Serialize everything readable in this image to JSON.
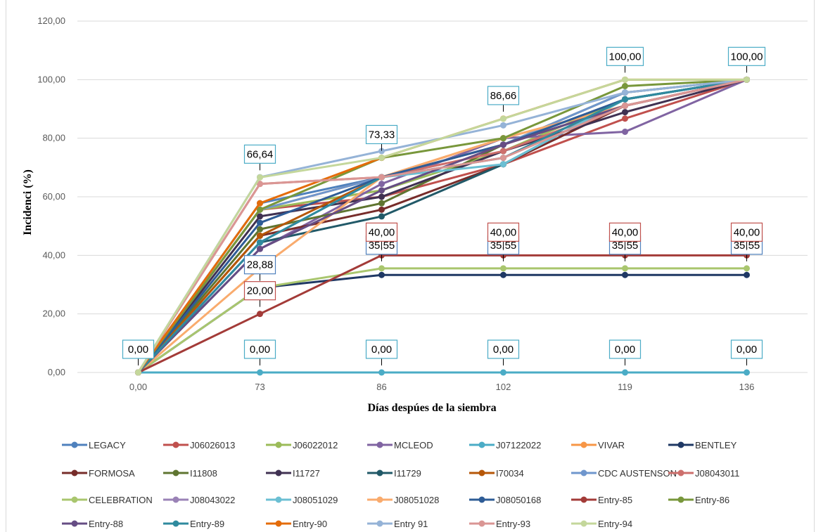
{
  "chart_data": {
    "type": "line",
    "title": "",
    "xlabel": "Días despúes de la siembra",
    "ylabel": "Incidenci (%)",
    "categories": [
      "0,00",
      "73",
      "86",
      "102",
      "119",
      "136"
    ],
    "ylim": [
      0,
      120
    ],
    "yticks": [
      "0,00",
      "20,00",
      "40,00",
      "60,00",
      "80,00",
      "100,00",
      "120,00"
    ],
    "grid": true,
    "legend_position": "bottom",
    "series": [
      {
        "name": "LEGACY",
        "color": "#4f81bd",
        "values": [
          0,
          57.8,
          66.7,
          77.8,
          93.3,
          100
        ]
      },
      {
        "name": "J06026013",
        "color": "#c0504d",
        "values": [
          0,
          55.6,
          60.0,
          71.1,
          86.7,
          100
        ]
      },
      {
        "name": "J06022012",
        "color": "#9bbb59",
        "values": [
          0,
          55.6,
          62.2,
          75.6,
          93.3,
          100
        ]
      },
      {
        "name": "MCLEOD",
        "color": "#8064a2",
        "values": [
          0,
          42.2,
          64.4,
          80.0,
          82.2,
          100
        ]
      },
      {
        "name": "J07122022",
        "color": "#4bacc6",
        "values": [
          0,
          0,
          0,
          0,
          0,
          0
        ]
      },
      {
        "name": "VIVAR",
        "color": "#f79646",
        "values": [
          0,
          55.6,
          66.7,
          80.0,
          91.1,
          100
        ]
      },
      {
        "name": "BENTLEY",
        "color": "#1f3864",
        "values": [
          0,
          28.9,
          33.3,
          33.3,
          33.3,
          33.3
        ]
      },
      {
        "name": "FORMOSA",
        "color": "#772c2a",
        "values": [
          0,
          46.7,
          55.6,
          71.1,
          91.1,
          100
        ]
      },
      {
        "name": "I11808",
        "color": "#5f7530",
        "values": [
          0,
          48.9,
          57.8,
          77.8,
          95.6,
          100
        ]
      },
      {
        "name": "I11727",
        "color": "#403152",
        "values": [
          0,
          53.3,
          60.0,
          75.6,
          88.9,
          100
        ]
      },
      {
        "name": "I11729",
        "color": "#215968",
        "values": [
          0,
          44.4,
          53.3,
          71.1,
          93.3,
          100
        ]
      },
      {
        "name": "I70034",
        "color": "#b65708",
        "values": [
          0,
          46.7,
          66.7,
          77.8,
          91.1,
          100
        ]
      },
      {
        "name": "CDC AUSTENSON",
        "color": "#6f96cd",
        "values": [
          0,
          55.6,
          66.7,
          77.8,
          95.6,
          100
        ]
      },
      {
        "name": "J08043011",
        "color": "#cd6f6c",
        "values": [
          0,
          64.4,
          66.7,
          75.6,
          91.1,
          100
        ]
      },
      {
        "name": "CELEBRATION",
        "color": "#a9c66e",
        "values": [
          0,
          28.9,
          35.55,
          35.55,
          35.55,
          35.55
        ]
      },
      {
        "name": "J08043022",
        "color": "#9a82b6",
        "values": [
          0,
          44.4,
          66.7,
          77.8,
          91.1,
          100
        ]
      },
      {
        "name": "J08051029",
        "color": "#6bbfd3",
        "values": [
          0,
          44.4,
          66.7,
          71.1,
          93.3,
          100
        ]
      },
      {
        "name": "J08051028",
        "color": "#f9ab6d",
        "values": [
          0,
          35.6,
          66.7,
          80.0,
          91.1,
          100
        ]
      },
      {
        "name": "J08050168",
        "color": "#2e5c96",
        "values": [
          0,
          51.1,
          66.7,
          77.8,
          93.3,
          100
        ]
      },
      {
        "name": "Entry-85",
        "color": "#a33b38",
        "values": [
          0,
          20.0,
          40.0,
          40.0,
          40.0,
          40.0
        ]
      },
      {
        "name": "Entry-86",
        "color": "#78973b",
        "values": [
          0,
          55.6,
          73.3,
          80.0,
          97.8,
          100
        ]
      },
      {
        "name": "Entry-88",
        "color": "#664d84",
        "values": [
          0,
          42.2,
          62.2,
          77.8,
          91.1,
          100
        ]
      },
      {
        "name": "Entry-89",
        "color": "#2f8a9e",
        "values": [
          0,
          44.4,
          66.7,
          73.3,
          93.3,
          100
        ]
      },
      {
        "name": "Entry-90",
        "color": "#e46c0a",
        "values": [
          0,
          57.8,
          73.3,
          86.7,
          100,
          100
        ]
      },
      {
        "name": "Entry 91",
        "color": "#95b3d7",
        "values": [
          0,
          66.7,
          75.6,
          84.4,
          95.6,
          100
        ]
      },
      {
        "name": "Entry-93",
        "color": "#da9694",
        "values": [
          0,
          64.4,
          66.7,
          73.3,
          91.1,
          100
        ]
      },
      {
        "name": "Entry-94",
        "color": "#c4d79b",
        "values": [
          0,
          66.64,
          73.33,
          86.66,
          100,
          100
        ]
      }
    ],
    "annotations": [
      {
        "text": "0,00",
        "category": 0,
        "value": 0,
        "color": "#4bacc6"
      },
      {
        "text": "66,64",
        "category": 1,
        "value": 66.64,
        "color": "#4bacc6"
      },
      {
        "text": "73,33",
        "category": 2,
        "value": 73.33,
        "color": "#4bacc6"
      },
      {
        "text": "86,66",
        "category": 3,
        "value": 86.66,
        "color": "#4bacc6"
      },
      {
        "text": "100,00",
        "category": 4,
        "value": 100,
        "color": "#4bacc6"
      },
      {
        "text": "100,00",
        "category": 5,
        "value": 100,
        "color": "#4bacc6"
      },
      {
        "text": "28,88",
        "category": 1,
        "value": 28.88,
        "color": "#4f81bd"
      },
      {
        "text": "35,55",
        "category": 2,
        "value": 35.55,
        "color": "#4f81bd"
      },
      {
        "text": "35,55",
        "category": 3,
        "value": 35.55,
        "color": "#4f81bd"
      },
      {
        "text": "35,55",
        "category": 4,
        "value": 35.55,
        "color": "#4f81bd"
      },
      {
        "text": "35,55",
        "category": 5,
        "value": 35.55,
        "color": "#4f81bd"
      },
      {
        "text": "20,00",
        "category": 1,
        "value": 20,
        "color": "#c0504d"
      },
      {
        "text": "40,00",
        "category": 2,
        "value": 40,
        "color": "#c0504d"
      },
      {
        "text": "40,00",
        "category": 3,
        "value": 40,
        "color": "#c0504d"
      },
      {
        "text": "40,00",
        "category": 4,
        "value": 40,
        "color": "#c0504d"
      },
      {
        "text": "40,00",
        "category": 5,
        "value": 40,
        "color": "#c0504d"
      },
      {
        "text": "0,00",
        "category": 1,
        "value": 0,
        "color": "#4bacc6"
      },
      {
        "text": "0,00",
        "category": 2,
        "value": 0,
        "color": "#4bacc6"
      },
      {
        "text": "0,00",
        "category": 3,
        "value": 0,
        "color": "#4bacc6"
      },
      {
        "text": "0,00",
        "category": 4,
        "value": 0,
        "color": "#4bacc6"
      },
      {
        "text": "0,00",
        "category": 5,
        "value": 0,
        "color": "#4bacc6"
      }
    ]
  }
}
